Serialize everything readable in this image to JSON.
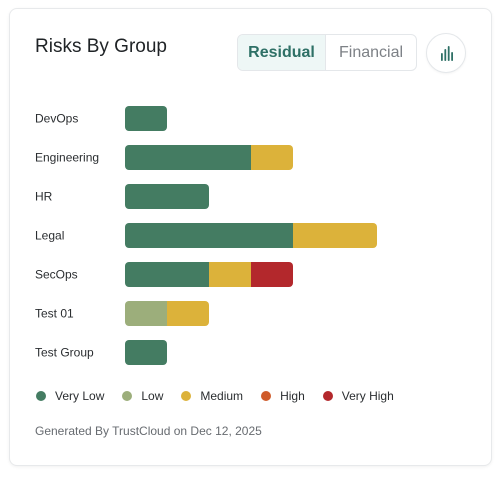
{
  "card": {
    "title": "Risks By Group",
    "toggle": [
      {
        "label": "Residual",
        "active": true
      },
      {
        "label": "Financial",
        "active": false
      }
    ],
    "chart_icon": "bar-chart-icon",
    "footer": "Generated By TrustCloud on Dec 12, 2025"
  },
  "colors": {
    "very_low": "#447c62",
    "low": "#9cae7b",
    "medium": "#dcb23a",
    "high": "#cf5b2a",
    "very_high": "#b3282c",
    "accent": "#2e7066"
  },
  "chart_data": {
    "type": "bar",
    "orientation": "horizontal",
    "stacked": true,
    "title": "Risks By Group",
    "categories": [
      "DevOps",
      "Engineering",
      "HR",
      "Legal",
      "SecOps",
      "Test 01",
      "Test Group"
    ],
    "series": [
      {
        "name": "Very Low",
        "color": "#447c62",
        "values": [
          1,
          3,
          2,
          4,
          2,
          0,
          1
        ]
      },
      {
        "name": "Low",
        "color": "#9cae7b",
        "values": [
          0,
          0,
          0,
          0,
          0,
          1,
          0
        ]
      },
      {
        "name": "Medium",
        "color": "#dcb23a",
        "values": [
          0,
          1,
          0,
          2,
          1,
          1,
          0
        ]
      },
      {
        "name": "High",
        "color": "#cf5b2a",
        "values": [
          0,
          0,
          0,
          0,
          0,
          0,
          0
        ]
      },
      {
        "name": "Very High",
        "color": "#b3282c",
        "values": [
          0,
          0,
          0,
          0,
          1,
          0,
          0
        ]
      }
    ],
    "grid": false,
    "legend_position": "bottom-left"
  }
}
